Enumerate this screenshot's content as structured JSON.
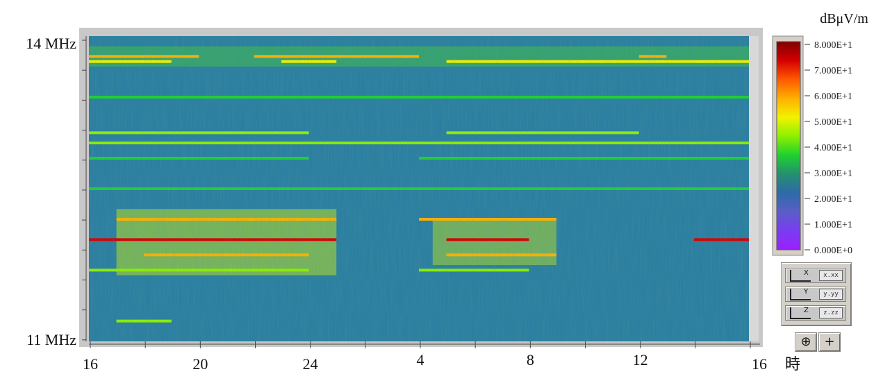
{
  "window": {
    "title": ""
  },
  "colorbar": {
    "unit": "dBμV/m",
    "ticks": [
      "8.000E+1",
      "7.000E+1",
      "6.000E+1",
      "5.000E+1",
      "4.000E+1",
      "3.000E+1",
      "2.000E+1",
      "1.000E+1",
      "0.000E+0"
    ],
    "colors": [
      "#7f0000",
      "#d40000",
      "#ff5a00",
      "#ffb000",
      "#f2f200",
      "#8cf000",
      "#1fd030",
      "#249070",
      "#2d6aa8",
      "#5a5ec8",
      "#7a3cf0",
      "#9b20ff"
    ]
  },
  "format_buttons": [
    {
      "axis": "X",
      "value": "x.xx"
    },
    {
      "axis": "Y",
      "value": "y.yy"
    },
    {
      "axis": "Z",
      "value": "z.zz"
    }
  ],
  "tools": {
    "zoom": "⊕",
    "cursor": "+"
  },
  "chart_data": {
    "type": "heatmap",
    "title": "",
    "xlabel": "時",
    "ylabel": "",
    "zlabel": "dBμV/m",
    "x_tick_labels": [
      "16",
      "20",
      "24",
      "4",
      "8",
      "12",
      "16"
    ],
    "x_unit": "時",
    "x_range_hours": [
      16,
      40
    ],
    "y_tick_labels": [
      "14 MHz",
      "11 MHz"
    ],
    "y_range_mhz": [
      11,
      14
    ],
    "z_range": [
      0,
      80
    ],
    "colormap": [
      "purple",
      "blue",
      "teal",
      "green",
      "yellow",
      "orange",
      "red"
    ],
    "bands": [
      {
        "freq_mhz": 13.8,
        "level": 55,
        "active_hours": [
          [
            16,
            20
          ],
          [
            22,
            28
          ],
          [
            36,
            37
          ]
        ]
      },
      {
        "freq_mhz": 13.75,
        "level": 50,
        "active_hours": [
          [
            16,
            19
          ],
          [
            23,
            25
          ],
          [
            29,
            40
          ]
        ]
      },
      {
        "freq_mhz": 13.4,
        "level": 40,
        "active_hours": [
          [
            16,
            40
          ]
        ]
      },
      {
        "freq_mhz": 13.05,
        "level": 45,
        "active_hours": [
          [
            16,
            24
          ],
          [
            29,
            36
          ]
        ]
      },
      {
        "freq_mhz": 12.95,
        "level": 45,
        "active_hours": [
          [
            16,
            40
          ]
        ]
      },
      {
        "freq_mhz": 12.8,
        "level": 38,
        "active_hours": [
          [
            16,
            24
          ],
          [
            28,
            40
          ]
        ]
      },
      {
        "freq_mhz": 12.5,
        "level": 35,
        "active_hours": [
          [
            16,
            40
          ]
        ]
      },
      {
        "freq_mhz": 12.2,
        "level": 55,
        "active_hours": [
          [
            17,
            25
          ],
          [
            28,
            33
          ]
        ]
      },
      {
        "freq_mhz": 12.0,
        "level": 70,
        "active_hours": [
          [
            16,
            25
          ],
          [
            29,
            32
          ],
          [
            38,
            39
          ],
          [
            39,
            40
          ]
        ]
      },
      {
        "freq_mhz": 11.85,
        "level": 55,
        "active_hours": [
          [
            18,
            24
          ],
          [
            29,
            33
          ]
        ]
      },
      {
        "freq_mhz": 11.7,
        "level": 45,
        "active_hours": [
          [
            16,
            24
          ],
          [
            28,
            32
          ]
        ]
      },
      {
        "freq_mhz": 11.2,
        "level": 42,
        "active_hours": [
          [
            17,
            19
          ]
        ]
      }
    ]
  }
}
